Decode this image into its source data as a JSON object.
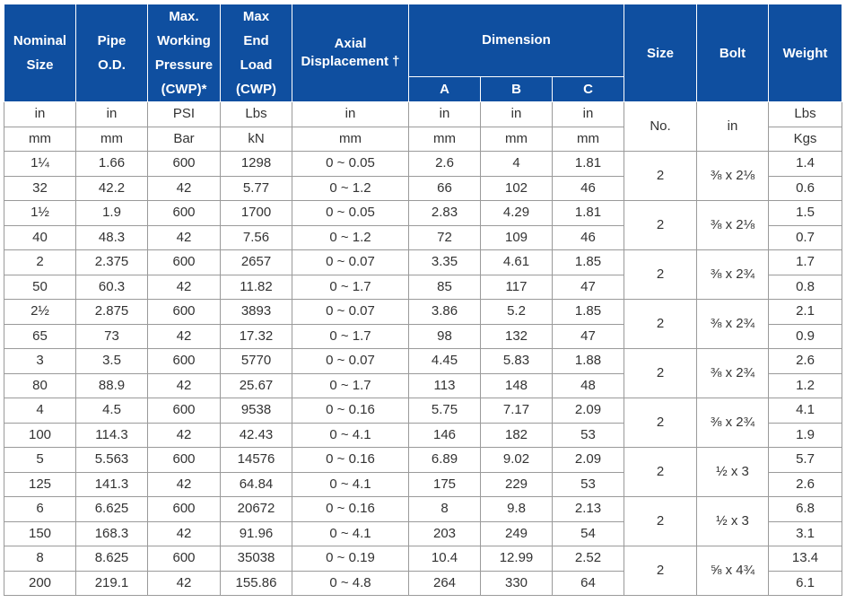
{
  "headers": {
    "nominal_size": [
      "Nominal",
      "Size"
    ],
    "pipe_od": [
      "Pipe",
      "O.D."
    ],
    "cwp": [
      "Max.",
      "Working",
      "Pressure",
      "(CWP)*"
    ],
    "end_load": [
      "Max",
      "End",
      "Load",
      "(CWP)"
    ],
    "axial": [
      "Axial",
      "Displacement †"
    ],
    "dimension": "Dimension",
    "dim_a": "A",
    "dim_b": "B",
    "dim_c": "C",
    "size": "Size",
    "bolt": "Bolt",
    "weight": "Weight"
  },
  "units_imperial": [
    "in",
    "in",
    "PSI",
    "Lbs",
    "in",
    "in",
    "in",
    "in",
    "Lbs"
  ],
  "units_metric": [
    "mm",
    "mm",
    "Bar",
    "kN",
    "mm",
    "mm",
    "mm",
    "mm",
    "Kgs"
  ],
  "size_unit": "No.",
  "bolt_unit": "in",
  "rows": [
    {
      "imp": [
        "1¼",
        "1.66",
        "600",
        "1298",
        "0 ~ 0.05",
        "2.6",
        "4",
        "1.81"
      ],
      "met": [
        "32",
        "42.2",
        "42",
        "5.77",
        "0 ~ 1.2",
        "66",
        "102",
        "46"
      ],
      "size": "2",
      "bolt": "⅜ x 2⅛",
      "w_imp": "1.4",
      "w_met": "0.6"
    },
    {
      "imp": [
        "1½",
        "1.9",
        "600",
        "1700",
        "0 ~ 0.05",
        "2.83",
        "4.29",
        "1.81"
      ],
      "met": [
        "40",
        "48.3",
        "42",
        "7.56",
        "0 ~ 1.2",
        "72",
        "109",
        "46"
      ],
      "size": "2",
      "bolt": "⅜ x 2⅛",
      "w_imp": "1.5",
      "w_met": "0.7"
    },
    {
      "imp": [
        "2",
        "2.375",
        "600",
        "2657",
        "0 ~ 0.07",
        "3.35",
        "4.61",
        "1.85"
      ],
      "met": [
        "50",
        "60.3",
        "42",
        "11.82",
        "0 ~ 1.7",
        "85",
        "117",
        "47"
      ],
      "size": "2",
      "bolt": "⅜ x 2¾",
      "w_imp": "1.7",
      "w_met": "0.8"
    },
    {
      "imp": [
        "2½",
        "2.875",
        "600",
        "3893",
        "0 ~ 0.07",
        "3.86",
        "5.2",
        "1.85"
      ],
      "met": [
        "65",
        "73",
        "42",
        "17.32",
        "0 ~ 1.7",
        "98",
        "132",
        "47"
      ],
      "size": "2",
      "bolt": "⅜ x 2¾",
      "w_imp": "2.1",
      "w_met": "0.9"
    },
    {
      "imp": [
        "3",
        "3.5",
        "600",
        "5770",
        "0 ~ 0.07",
        "4.45",
        "5.83",
        "1.88"
      ],
      "met": [
        "80",
        "88.9",
        "42",
        "25.67",
        "0 ~ 1.7",
        "113",
        "148",
        "48"
      ],
      "size": "2",
      "bolt": "⅜ x 2¾",
      "w_imp": "2.6",
      "w_met": "1.2"
    },
    {
      "imp": [
        "4",
        "4.5",
        "600",
        "9538",
        "0 ~ 0.16",
        "5.75",
        "7.17",
        "2.09"
      ],
      "met": [
        "100",
        "114.3",
        "42",
        "42.43",
        "0 ~ 4.1",
        "146",
        "182",
        "53"
      ],
      "size": "2",
      "bolt": "⅜ x 2¾",
      "w_imp": "4.1",
      "w_met": "1.9"
    },
    {
      "imp": [
        "5",
        "5.563",
        "600",
        "14576",
        "0 ~ 0.16",
        "6.89",
        "9.02",
        "2.09"
      ],
      "met": [
        "125",
        "141.3",
        "42",
        "64.84",
        "0 ~ 4.1",
        "175",
        "229",
        "53"
      ],
      "size": "2",
      "bolt": "½ x 3",
      "w_imp": "5.7",
      "w_met": "2.6"
    },
    {
      "imp": [
        "6",
        "6.625",
        "600",
        "20672",
        "0 ~ 0.16",
        "8",
        "9.8",
        "2.13"
      ],
      "met": [
        "150",
        "168.3",
        "42",
        "91.96",
        "0 ~ 4.1",
        "203",
        "249",
        "54"
      ],
      "size": "2",
      "bolt": "½ x 3",
      "w_imp": "6.8",
      "w_met": "3.1"
    },
    {
      "imp": [
        "8",
        "8.625",
        "600",
        "35038",
        "0 ~ 0.19",
        "10.4",
        "12.99",
        "2.52"
      ],
      "met": [
        "200",
        "219.1",
        "42",
        "155.86",
        "0 ~ 4.8",
        "264",
        "330",
        "64"
      ],
      "size": "2",
      "bolt": "⅝ x 4¾",
      "w_imp": "13.4",
      "w_met": "6.1"
    }
  ]
}
